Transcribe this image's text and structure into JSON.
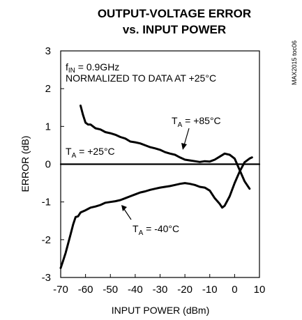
{
  "chart_data": {
    "type": "line",
    "title_line1": "OUTPUT-VOLTAGE ERROR",
    "title_line2": "vs. INPUT POWER",
    "xlabel": "INPUT POWER (dBm)",
    "ylabel": "ERROR (dB)",
    "xlim": [
      -70,
      10
    ],
    "ylim": [
      -3,
      3
    ],
    "x_ticks": [
      "-70",
      "-60",
      "-50",
      "-40",
      "-30",
      "-20",
      "-10",
      "0",
      "10"
    ],
    "y_ticks": [
      "3",
      "2",
      "1",
      "0",
      "-1",
      "-2",
      "-3"
    ],
    "grid": false,
    "condition_line1": "f",
    "condition_line1_sub": "IN",
    "condition_line1_rest": " = 0.9GHz",
    "condition_line2": "NORMALIZED TO DATA AT +25°C",
    "figure_code": "MAX2015 toc06",
    "series": [
      {
        "name": "TA = +25°C",
        "label_main": "T",
        "label_sub": "A",
        "label_rest": " = +25°C",
        "x": [
          -70,
          10
        ],
        "y": [
          0,
          0
        ]
      },
      {
        "name": "TA = +85°C",
        "label_main": "T",
        "label_sub": "A",
        "label_rest": " = +85°C",
        "x": [
          -62,
          -61,
          -60,
          -59,
          -58,
          -56,
          -54,
          -52,
          -50,
          -48,
          -46,
          -44,
          -42,
          -40,
          -38,
          -36,
          -34,
          -32,
          -30,
          -28,
          -26,
          -24,
          -22,
          -20,
          -18,
          -16,
          -14,
          -12,
          -10,
          -8,
          -6,
          -4,
          -2,
          0,
          2,
          4,
          6
        ],
        "y": [
          1.55,
          1.3,
          1.1,
          1.05,
          1.05,
          0.95,
          0.92,
          0.85,
          0.82,
          0.78,
          0.72,
          0.68,
          0.6,
          0.58,
          0.55,
          0.5,
          0.45,
          0.42,
          0.38,
          0.32,
          0.28,
          0.25,
          0.18,
          0.12,
          0.1,
          0.08,
          0.06,
          0.08,
          0.07,
          0.12,
          0.2,
          0.28,
          0.25,
          0.15,
          -0.15,
          -0.45,
          -0.65
        ]
      },
      {
        "name": "TA = -40°C",
        "label_main": "T",
        "label_sub": "A",
        "label_rest": " = -40°C",
        "x": [
          -70,
          -69,
          -68,
          -67,
          -66,
          -65,
          -64,
          -63,
          -62,
          -60,
          -58,
          -56,
          -54,
          -52,
          -50,
          -48,
          -46,
          -44,
          -42,
          -40,
          -38,
          -36,
          -34,
          -32,
          -30,
          -28,
          -26,
          -24,
          -22,
          -20,
          -18,
          -16,
          -14,
          -12,
          -10,
          -8,
          -6,
          -5,
          -4,
          -2,
          0,
          2,
          4,
          6,
          7
        ],
        "y": [
          -2.75,
          -2.55,
          -2.35,
          -2.1,
          -1.85,
          -1.6,
          -1.4,
          -1.38,
          -1.28,
          -1.22,
          -1.15,
          -1.12,
          -1.08,
          -1.02,
          -1.0,
          -0.98,
          -0.95,
          -0.9,
          -0.85,
          -0.8,
          -0.75,
          -0.72,
          -0.68,
          -0.65,
          -0.62,
          -0.6,
          -0.58,
          -0.55,
          -0.52,
          -0.5,
          -0.52,
          -0.55,
          -0.6,
          -0.62,
          -0.7,
          -0.9,
          -1.05,
          -1.15,
          -1.1,
          -0.85,
          -0.5,
          -0.2,
          0.05,
          0.15,
          0.18
        ]
      }
    ]
  }
}
